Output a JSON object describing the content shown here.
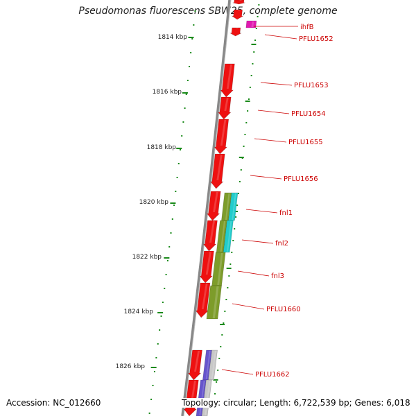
{
  "title": "Pseudomonas fluorescens SBW25, complete genome",
  "accession_label": "Accession: NC_012660",
  "summary_label": "Topology: circular; Length: 6,722,539 bp; Genes: 6,018",
  "colors": {
    "backbone": "#808080",
    "gene_red": "#ee1111",
    "gene_magenta": "#e01ab0",
    "gene_olive": "#7d9c2a",
    "gene_cyan": "#22cccc",
    "gene_blue": "#6655cc",
    "gene_gray": "#c8c8c8",
    "tick": "#1a8a1a",
    "label": "#cc0000"
  },
  "scale_labels": [
    {
      "text": "1814 kbp"
    },
    {
      "text": "1816 kbp"
    },
    {
      "text": "1818 kbp"
    },
    {
      "text": "1820 kbp"
    },
    {
      "text": "1822 kbp"
    },
    {
      "text": "1824 kbp"
    },
    {
      "text": "1826 kbp"
    }
  ],
  "gene_labels": [
    {
      "text": "ihfB"
    },
    {
      "text": "PFLU1652"
    },
    {
      "text": "PFLU1653"
    },
    {
      "text": "PFLU1654"
    },
    {
      "text": "PFLU1655"
    },
    {
      "text": "PFLU1656"
    },
    {
      "text": "fnl1"
    },
    {
      "text": "fnl2"
    },
    {
      "text": "fnl3"
    },
    {
      "text": "PFLU1660"
    },
    {
      "text": "PFLU1662"
    }
  ]
}
